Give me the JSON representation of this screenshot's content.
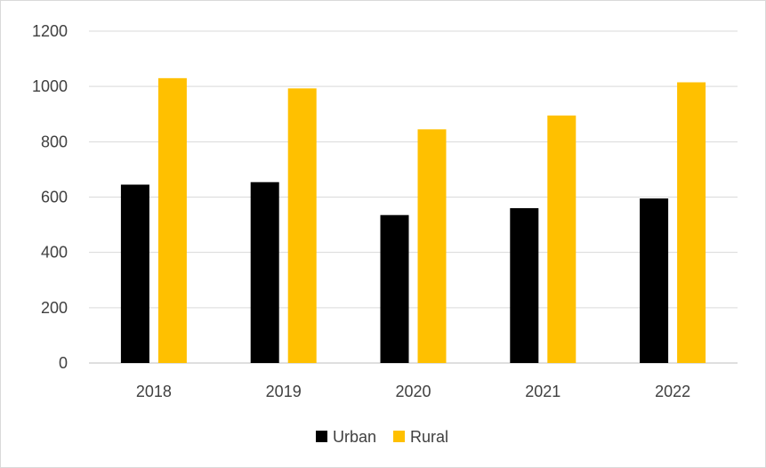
{
  "chart_data": {
    "type": "bar",
    "title": "",
    "xlabel": "",
    "ylabel": "",
    "categories": [
      "2018",
      "2019",
      "2020",
      "2021",
      "2022"
    ],
    "series": [
      {
        "name": "Urban",
        "color": "#000000",
        "values": [
          645,
          654,
          535,
          560,
          595
        ]
      },
      {
        "name": "Rural",
        "color": "#FFC000",
        "values": [
          1030,
          993,
          845,
          895,
          1015
        ]
      }
    ],
    "ylim": [
      0,
      1200
    ],
    "yticks": [
      0,
      200,
      400,
      600,
      800,
      1000,
      1200
    ],
    "grid": true,
    "legend": "bottom-center"
  }
}
